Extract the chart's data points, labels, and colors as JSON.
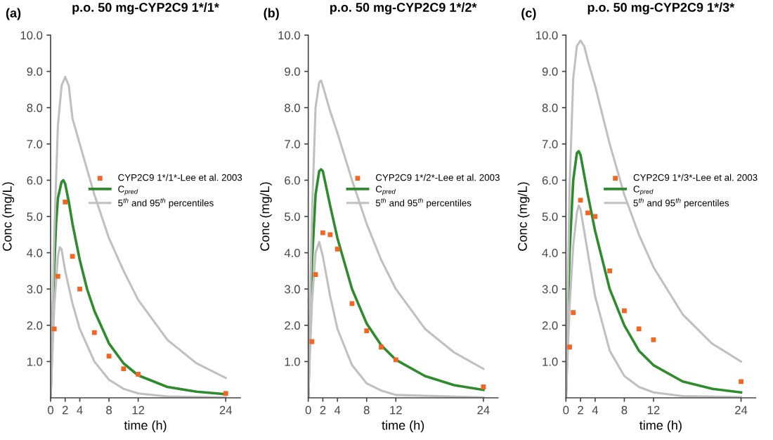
{
  "chart_data": [
    {
      "type": "line",
      "title": "p.o. 50 mg-CYP2C9 1*/1*",
      "annotations": [
        "(a)"
      ],
      "xlabel": "time (h)",
      "ylabel": "Conc (mg/L)",
      "xlim": [
        0,
        26
      ],
      "xticks": [
        0,
        2,
        4,
        8,
        12,
        24
      ],
      "ylim": [
        0,
        10
      ],
      "yticks": [
        {
          "value": 1,
          "label": "1.0"
        },
        {
          "value": 2,
          "label": "2.0"
        },
        {
          "value": 3,
          "label": "3.0"
        },
        {
          "value": 4,
          "label": "4.0"
        },
        {
          "value": 5,
          "label": "5.0"
        },
        {
          "value": 6,
          "label": "6.0"
        },
        {
          "value": 7,
          "label": "7.0"
        },
        {
          "value": 8,
          "label": "8.0"
        },
        {
          "value": 9,
          "label": "9.0"
        },
        {
          "value": 10,
          "label": "10.0"
        }
      ],
      "legend": "right",
      "series": [
        {
          "name": "CYP2C9 1*/1*-Lee et al. 2003",
          "type": "scatter",
          "marker": "square",
          "color": "#f26522",
          "x": [
            0.5,
            1,
            2,
            3,
            4,
            6,
            8,
            10,
            12,
            24
          ],
          "values": [
            1.9,
            3.35,
            5.4,
            3.9,
            3.0,
            1.8,
            1.15,
            0.8,
            0.65,
            0.12
          ]
        },
        {
          "name": "C$_{pred}$",
          "color": "#2e8b2e",
          "x": [
            0,
            0.25,
            0.5,
            0.75,
            1,
            1.5,
            1.75,
            2,
            2.5,
            3,
            4,
            5,
            6,
            8,
            10,
            12,
            16,
            20,
            24
          ],
          "values": [
            0,
            2.0,
            3.6,
            4.8,
            5.5,
            5.95,
            6.0,
            5.9,
            5.4,
            4.8,
            3.8,
            3.0,
            2.4,
            1.5,
            0.95,
            0.62,
            0.3,
            0.17,
            0.1
          ]
        },
        {
          "name": "5$^{th}$ and 95$^{th}$ percentiles",
          "color": "#c0c0c0",
          "x": [
            0,
            0.5,
            1,
            1.5,
            2,
            2.5,
            3,
            4,
            6,
            8,
            10,
            12,
            16,
            20,
            24
          ],
          "values": [
            0,
            4.5,
            7.5,
            8.6,
            8.85,
            8.6,
            7.7,
            7.0,
            5.6,
            4.4,
            3.5,
            2.7,
            1.6,
            0.95,
            0.55
          ]
        },
        {
          "color": "#c0c0c0",
          "x": [
            0,
            0.5,
            1,
            1.25,
            1.5,
            2,
            3,
            4,
            6,
            8,
            10,
            12,
            16,
            24
          ],
          "values": [
            0,
            2.5,
            3.9,
            4.15,
            4.1,
            3.5,
            2.6,
            1.9,
            1.0,
            0.5,
            0.25,
            0.12,
            0.04,
            0.01
          ]
        }
      ]
    },
    {
      "type": "line",
      "title": "p.o. 50 mg-CYP2C9 1*/2*",
      "annotations": [
        "(b)"
      ],
      "xlabel": "time (h)",
      "ylabel": "Conc (mg/L)",
      "xlim": [
        0,
        26
      ],
      "xticks": [
        0,
        2,
        4,
        8,
        12,
        24
      ],
      "ylim": [
        0,
        10
      ],
      "yticks": [
        {
          "value": 1,
          "label": "1.0"
        },
        {
          "value": 2,
          "label": "2.0"
        },
        {
          "value": 3,
          "label": "3.0"
        },
        {
          "value": 4,
          "label": "4.0"
        },
        {
          "value": 5,
          "label": "5.0"
        },
        {
          "value": 6,
          "label": "6.0"
        },
        {
          "value": 7,
          "label": "7.0"
        },
        {
          "value": 8,
          "label": "8.0"
        },
        {
          "value": 9,
          "label": "9.0"
        },
        {
          "value": 10,
          "label": "10.0"
        }
      ],
      "legend": "right",
      "series": [
        {
          "name": "CYP2C9 1*/2*-Lee et al. 2003",
          "type": "scatter",
          "marker": "square",
          "color": "#f26522",
          "x": [
            0.5,
            1,
            2,
            3,
            4,
            6,
            8,
            10,
            12,
            24
          ],
          "values": [
            1.55,
            3.4,
            4.55,
            4.5,
            4.1,
            2.6,
            1.85,
            1.4,
            1.05,
            0.3
          ]
        },
        {
          "name": "C$_{pred}$",
          "color": "#2e8b2e",
          "x": [
            0,
            0.25,
            0.5,
            1,
            1.5,
            1.75,
            2,
            3,
            4,
            6,
            8,
            10,
            12,
            16,
            20,
            24
          ],
          "values": [
            0,
            2.0,
            3.7,
            5.6,
            6.25,
            6.3,
            6.25,
            5.3,
            4.4,
            3.0,
            2.05,
            1.45,
            1.05,
            0.6,
            0.35,
            0.22
          ]
        },
        {
          "name": "5$^{th}$ and 95$^{th}$ percentiles",
          "color": "#c0c0c0",
          "x": [
            0,
            0.5,
            1,
            1.5,
            1.75,
            2,
            3,
            4,
            6,
            8,
            10,
            12,
            16,
            20,
            24
          ],
          "values": [
            0,
            5.0,
            8.0,
            8.7,
            8.75,
            8.6,
            7.9,
            7.3,
            6.0,
            4.8,
            3.8,
            3.0,
            1.9,
            1.25,
            0.8
          ]
        },
        {
          "color": "#c0c0c0",
          "x": [
            0,
            0.5,
            1,
            1.5,
            2,
            3,
            4,
            6,
            8,
            10,
            12,
            24
          ],
          "values": [
            0,
            2.6,
            4.0,
            4.3,
            3.9,
            2.8,
            1.9,
            0.9,
            0.4,
            0.2,
            0.08,
            0.01
          ]
        }
      ]
    },
    {
      "type": "line",
      "title": "p.o. 50 mg-CYP2C9 1*/3*",
      "annotations": [
        "(c)"
      ],
      "xlabel": "time (h)",
      "ylabel": "Conc (mg/L)",
      "xlim": [
        0,
        26
      ],
      "xticks": [
        0,
        2,
        4,
        8,
        12,
        24
      ],
      "ylim": [
        0,
        10
      ],
      "yticks": [
        {
          "value": 1,
          "label": "1.0"
        },
        {
          "value": 2,
          "label": "2.0"
        },
        {
          "value": 3,
          "label": "3.0"
        },
        {
          "value": 4,
          "label": "4.0"
        },
        {
          "value": 5,
          "label": "5.0"
        },
        {
          "value": 6,
          "label": "6.0"
        },
        {
          "value": 7,
          "label": "7.0"
        },
        {
          "value": 8,
          "label": "8.0"
        },
        {
          "value": 9,
          "label": "9.0"
        },
        {
          "value": 10,
          "label": "10.0"
        }
      ],
      "legend": "right",
      "series": [
        {
          "name": "CYP2C9 1*/3*-Lee et al. 2003",
          "type": "scatter",
          "marker": "square",
          "color": "#f26522",
          "x": [
            0.5,
            1,
            2,
            3,
            4,
            6,
            8,
            10,
            12,
            24
          ],
          "values": [
            1.4,
            2.35,
            5.45,
            5.1,
            5.0,
            3.5,
            2.4,
            1.9,
            1.6,
            0.45
          ]
        },
        {
          "name": "C$_{pred}$",
          "color": "#2e8b2e",
          "x": [
            0,
            0.25,
            0.5,
            1,
            1.5,
            1.75,
            2,
            3,
            4,
            6,
            8,
            10,
            12,
            16,
            20,
            24
          ],
          "values": [
            0,
            2.2,
            4.0,
            6.0,
            6.75,
            6.8,
            6.7,
            5.6,
            4.6,
            3.0,
            2.0,
            1.3,
            0.9,
            0.45,
            0.25,
            0.15
          ]
        },
        {
          "name": "5$^{th}$ and 95$^{th}$ percentiles",
          "color": "#c0c0c0",
          "x": [
            0,
            0.5,
            1,
            1.5,
            2,
            2.5,
            3,
            4,
            6,
            8,
            10,
            12,
            16,
            20,
            24
          ],
          "values": [
            0,
            5.8,
            8.8,
            9.7,
            9.85,
            9.7,
            9.3,
            8.6,
            7.0,
            5.6,
            4.5,
            3.6,
            2.3,
            1.5,
            1.0
          ]
        },
        {
          "color": "#c0c0c0",
          "x": [
            0,
            0.5,
            1,
            1.5,
            1.75,
            2,
            3,
            4,
            6,
            8,
            10,
            12,
            16,
            24
          ],
          "values": [
            0,
            2.5,
            4.2,
            5.1,
            5.3,
            5.2,
            4.0,
            2.8,
            1.3,
            0.6,
            0.3,
            0.15,
            0.05,
            0.02
          ]
        }
      ]
    }
  ]
}
